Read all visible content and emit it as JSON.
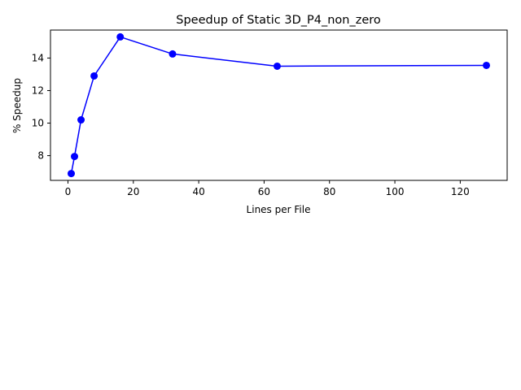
{
  "chart_data": {
    "type": "line",
    "title": "Speedup of Static 3D_P4_non_zero",
    "xlabel": "Lines per File",
    "ylabel": "% Speedup",
    "xlim": [
      -5.35,
      134.35
    ],
    "ylim": [
      6.48,
      15.72
    ],
    "xticks": [
      0,
      20,
      40,
      60,
      80,
      100,
      120
    ],
    "yticks": [
      8,
      10,
      12,
      14
    ],
    "grid": false,
    "legend": "none",
    "series": [
      {
        "color": "#0000ff",
        "marker": "circle",
        "points": [
          {
            "x": 1,
            "y": 6.9
          },
          {
            "x": 2,
            "y": 7.95
          },
          {
            "x": 4,
            "y": 10.2
          },
          {
            "x": 8,
            "y": 12.9
          },
          {
            "x": 16,
            "y": 15.3
          },
          {
            "x": 32,
            "y": 14.25
          },
          {
            "x": 64,
            "y": 13.5
          },
          {
            "x": 128,
            "y": 13.55
          }
        ]
      }
    ]
  }
}
